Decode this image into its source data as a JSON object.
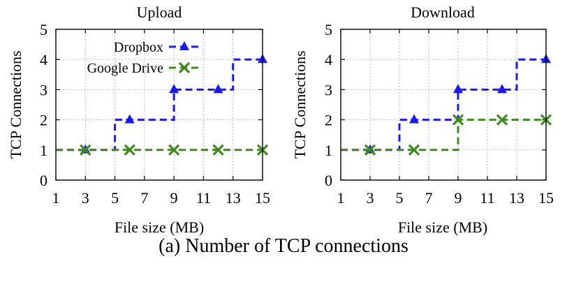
{
  "caption": "(a) Number of TCP connections",
  "chart_data": [
    {
      "type": "line",
      "title": "Upload",
      "xlabel": "File size (MB)",
      "ylabel": "TCP Connections",
      "xlim": [
        1,
        15
      ],
      "ylim": [
        0,
        5
      ],
      "xticks": [
        1,
        3,
        5,
        7,
        9,
        11,
        13,
        15
      ],
      "yticks": [
        0,
        1,
        2,
        3,
        4,
        5
      ],
      "grid": true,
      "step": true,
      "legend_position": "top-left",
      "series": [
        {
          "name": "Dropbox",
          "color": "#1a1aee",
          "marker": "triangle",
          "x": [
            1,
            3,
            5,
            6,
            9,
            12,
            13,
            15
          ],
          "y": [
            1,
            1,
            2,
            2,
            3,
            3,
            4,
            4
          ],
          "marker_x": [
            3,
            6,
            9,
            12,
            15
          ],
          "marker_y": [
            1,
            2,
            3,
            3,
            4
          ]
        },
        {
          "name": "Google Drive",
          "color": "#3f8a1f",
          "marker": "x",
          "x": [
            1,
            3,
            6,
            9,
            12,
            15
          ],
          "y": [
            1,
            1,
            1,
            1,
            1,
            1
          ],
          "marker_x": [
            3,
            6,
            9,
            12,
            15
          ],
          "marker_y": [
            1,
            1,
            1,
            1,
            1
          ]
        }
      ]
    },
    {
      "type": "line",
      "title": "Download",
      "xlabel": "File size (MB)",
      "ylabel": "TCP Connections",
      "xlim": [
        1,
        15
      ],
      "ylim": [
        0,
        5
      ],
      "xticks": [
        1,
        3,
        5,
        7,
        9,
        11,
        13,
        15
      ],
      "yticks": [
        0,
        1,
        2,
        3,
        4,
        5
      ],
      "grid": true,
      "step": true,
      "series": [
        {
          "name": "Dropbox",
          "color": "#1a1aee",
          "marker": "triangle",
          "x": [
            1,
            3,
            5,
            6,
            9,
            12,
            13,
            15
          ],
          "y": [
            1,
            1,
            2,
            2,
            3,
            3,
            4,
            4
          ],
          "marker_x": [
            3,
            6,
            9,
            12,
            15
          ],
          "marker_y": [
            1,
            2,
            3,
            3,
            4
          ]
        },
        {
          "name": "Google Drive",
          "color": "#3f8a1f",
          "marker": "x",
          "x": [
            1,
            3,
            6,
            9,
            12,
            15
          ],
          "y": [
            1,
            1,
            1,
            2,
            2,
            2
          ],
          "marker_x": [
            3,
            6,
            9,
            12,
            15
          ],
          "marker_y": [
            1,
            1,
            2,
            2,
            2
          ]
        }
      ]
    }
  ]
}
